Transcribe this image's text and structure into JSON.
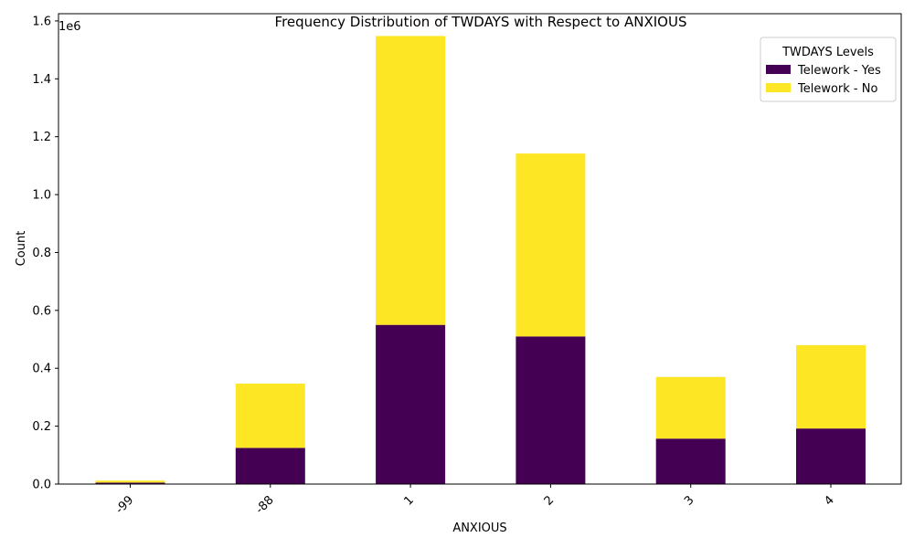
{
  "chart_data": {
    "type": "bar",
    "stacked": true,
    "title": "Frequency Distribution of TWDAYS with Respect to ANXIOUS",
    "xlabel": "ANXIOUS",
    "ylabel": "Count",
    "y_offset_label": "1e6",
    "categories": [
      "-99",
      "-88",
      "1",
      "2",
      "3",
      "4"
    ],
    "ylim": [
      0,
      1625000
    ],
    "yticks": [
      "0.0",
      "0.2",
      "0.4",
      "0.6",
      "0.8",
      "1.0",
      "1.2",
      "1.4",
      "1.6"
    ],
    "ytick_values": [
      0,
      200000,
      400000,
      600000,
      800000,
      1000000,
      1200000,
      1400000,
      1600000
    ],
    "legend": {
      "title": "TWDAYS Levels",
      "position": "top-right"
    },
    "grid": false,
    "series": [
      {
        "name": "Telework - Yes",
        "color": "#440154",
        "values": [
          5000,
          125000,
          550000,
          510000,
          157000,
          192000
        ]
      },
      {
        "name": "Telework - No",
        "color": "#fde725",
        "values": [
          7000,
          222000,
          998000,
          632000,
          213000,
          288000
        ]
      }
    ]
  }
}
